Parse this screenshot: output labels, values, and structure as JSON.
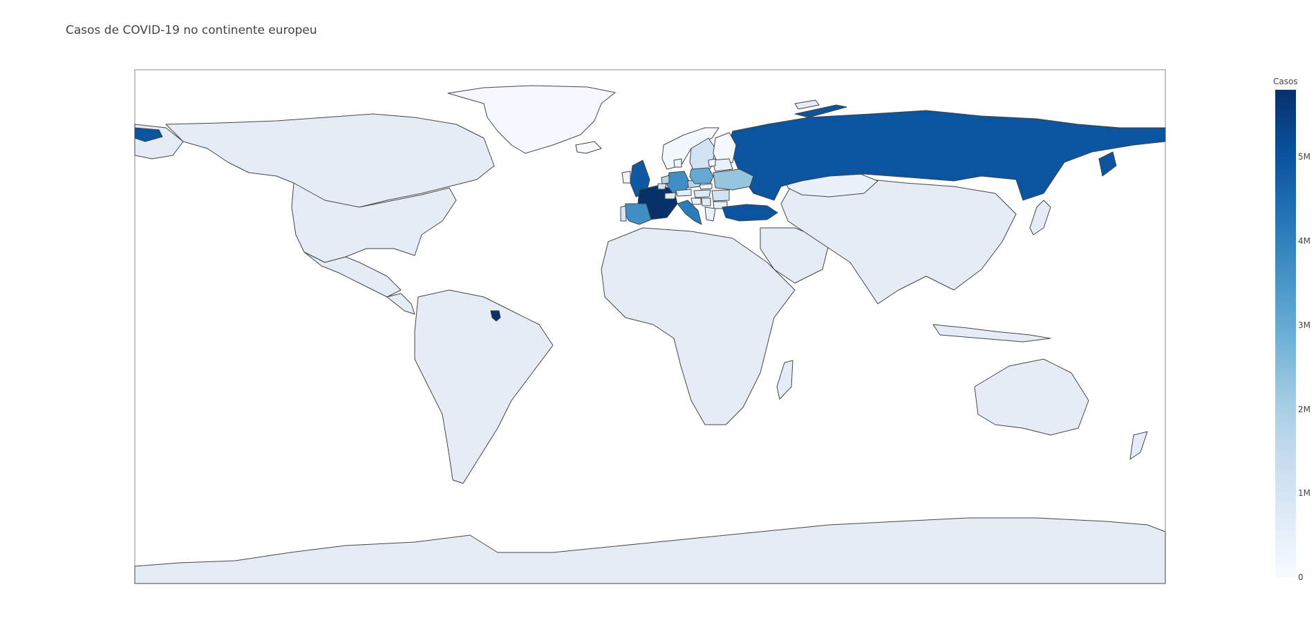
{
  "title": "Casos de COVID-19 no continente europeu",
  "colorbar": {
    "title": "Casos",
    "min": 0,
    "max": 5800000,
    "ticks": [
      {
        "label": "5M",
        "value": 5000000
      },
      {
        "label": "4M",
        "value": 4000000
      },
      {
        "label": "3M",
        "value": 3000000
      },
      {
        "label": "2M",
        "value": 2000000
      },
      {
        "label": "1M",
        "value": 1000000
      },
      {
        "label": "0",
        "value": 0
      }
    ],
    "colorscale": [
      "#f7fbff",
      "#deebf7",
      "#c6dbef",
      "#9ecae1",
      "#6baed6",
      "#4292c6",
      "#2171b5",
      "#08519c",
      "#08306b"
    ]
  },
  "map_style": {
    "no_data_fill": "#e5ecf6",
    "border_color": "#444444",
    "frame_color": "#888888"
  },
  "chart_data": {
    "type": "choropleth",
    "scope": "world",
    "projection": "equirectangular",
    "locations": [
      {
        "country": "France",
        "cases": 5800000
      },
      {
        "country": "French Guiana",
        "cases": 5800000
      },
      {
        "country": "Russia",
        "cases": 5000000
      },
      {
        "country": "United Kingdom",
        "cases": 4900000
      },
      {
        "country": "Turkey",
        "cases": 5000000
      },
      {
        "country": "Italy",
        "cases": 4100000
      },
      {
        "country": "Spain",
        "cases": 3700000
      },
      {
        "country": "Germany",
        "cases": 3700000
      },
      {
        "country": "Poland",
        "cases": 3000000
      },
      {
        "country": "Ukraine",
        "cases": 2300000
      },
      {
        "country": "Netherlands",
        "cases": 1800000
      },
      {
        "country": "Czechia",
        "cases": 1700000
      },
      {
        "country": "Belgium",
        "cases": 1100000
      },
      {
        "country": "Sweden",
        "cases": 1100000
      },
      {
        "country": "Romania",
        "cases": 1100000
      },
      {
        "country": "Portugal",
        "cases": 850000
      },
      {
        "country": "Hungary",
        "cases": 800000
      },
      {
        "country": "Serbia",
        "cases": 710000
      },
      {
        "country": "Switzerland",
        "cases": 700000
      },
      {
        "country": "Austria",
        "cases": 650000
      },
      {
        "country": "Belarus",
        "cases": 420000
      },
      {
        "country": "Bulgaria",
        "cases": 420000
      },
      {
        "country": "Greece",
        "cases": 400000
      },
      {
        "country": "Slovakia",
        "cases": 390000
      },
      {
        "country": "Croatia",
        "cases": 350000
      },
      {
        "country": "Ireland",
        "cases": 260000
      },
      {
        "country": "Denmark",
        "cases": 290000
      },
      {
        "country": "Lithuania",
        "cases": 270000
      },
      {
        "country": "Kazakhstan",
        "cases": 400000
      },
      {
        "country": "Norway",
        "cases": 130000
      },
      {
        "country": "Finland",
        "cases": 90000
      },
      {
        "country": "Iceland",
        "cases": 6000
      }
    ]
  }
}
